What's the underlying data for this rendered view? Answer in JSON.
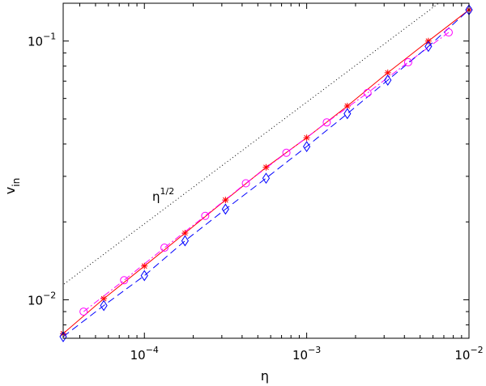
{
  "chart_data": {
    "type": "line",
    "title": "",
    "xlabel": "η",
    "ylabel": "v",
    "ylabel_subscript": "in",
    "xscale": "log",
    "yscale": "log",
    "xlim": [
      3.16e-05,
      0.01
    ],
    "ylim": [
      0.0071,
      0.14
    ],
    "grid": false,
    "x_ticks": [
      {
        "value": 0.0001,
        "base": "10",
        "exp": "−4"
      },
      {
        "value": 0.001,
        "base": "10",
        "exp": "−3"
      },
      {
        "value": 0.01,
        "base": "10",
        "exp": "−2"
      }
    ],
    "y_ticks": [
      {
        "value": 0.01,
        "base": "10",
        "exp": "−2"
      },
      {
        "value": 0.1,
        "base": "10",
        "exp": "−1"
      }
    ],
    "annotation": {
      "base": "η",
      "exp": "1/2",
      "x": 0.00011,
      "y": 0.0225
    },
    "series": [
      {
        "style": "dotted",
        "color": "#000000",
        "x": [
          3.2e-05,
          0.0065
        ],
        "y": [
          0.0115,
          0.14
        ]
      },
      {
        "style": "solid",
        "marker": "star",
        "color": "#ff0000",
        "x": [
          3.16e-05,
          5.62e-05,
          0.0001,
          0.000178,
          0.000316,
          0.000562,
          0.001,
          0.00178,
          0.00316,
          0.00562,
          0.01
        ],
        "y": [
          0.0074,
          0.0101,
          0.0135,
          0.0181,
          0.0243,
          0.0325,
          0.0423,
          0.0561,
          0.0754,
          0.1,
          0.132
        ]
      },
      {
        "style": "dash-dot",
        "marker": "circle",
        "color": "#ff00ff",
        "x": [
          4.22e-05,
          7.5e-05,
          0.000133,
          0.000237,
          0.000422,
          0.00075,
          0.00133,
          0.00237,
          0.00422,
          0.0075
        ],
        "y": [
          0.009,
          0.0119,
          0.0159,
          0.0211,
          0.0282,
          0.037,
          0.0485,
          0.063,
          0.0828,
          0.108
        ]
      },
      {
        "style": "dashed",
        "marker": "diamond",
        "color": "#0000ff",
        "x": [
          3.16e-05,
          5.62e-05,
          0.0001,
          0.000178,
          0.000316,
          0.000562,
          0.001,
          0.00178,
          0.00316,
          0.00562,
          0.01
        ],
        "y": [
          0.0072,
          0.0095,
          0.0124,
          0.0169,
          0.0224,
          0.0295,
          0.0391,
          0.0524,
          0.0706,
          0.0953,
          0.132
        ]
      }
    ]
  }
}
